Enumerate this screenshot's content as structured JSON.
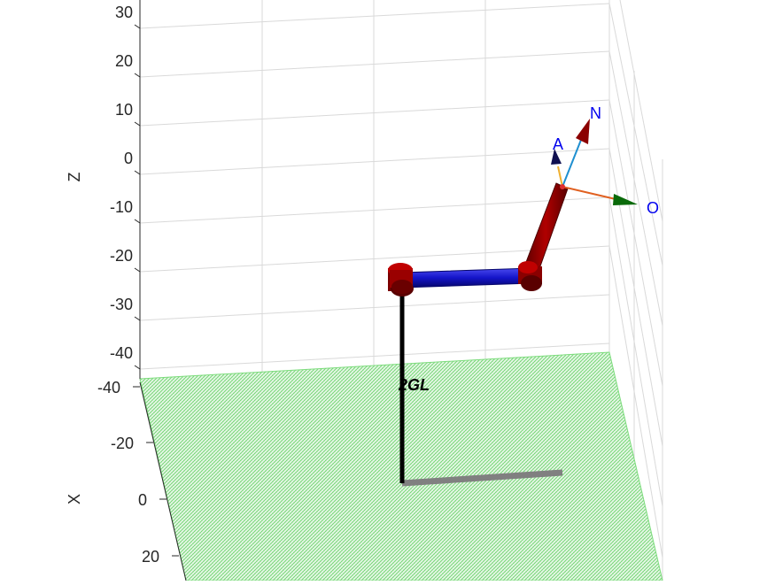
{
  "figure": {
    "robot_name": "2GL",
    "z_axis": {
      "label": "Z",
      "ticks": [
        "30",
        "20",
        "10",
        "0",
        "-10",
        "-20",
        "-30",
        "-40"
      ]
    },
    "x_axis": {
      "label": "X",
      "ticks": [
        "-40",
        "-20",
        "0",
        "20"
      ]
    },
    "end_effector_frame": {
      "labels": {
        "n": "N",
        "o": "O",
        "a": "A"
      }
    },
    "colors": {
      "floor": "#7ddc7d",
      "grid": "#d9d9d9",
      "base_link": "#000000",
      "shadow": "#808080",
      "link_1": "#1414c8",
      "link_2": "#8c0000",
      "joint": "#a00000",
      "n_arrow": "#8b0000",
      "o_arrow": "#0a6a0a",
      "a_arrow": "#101050",
      "n_line": "#1f8fd0",
      "o_line": "#e06020",
      "a_line": "#f0b030",
      "label_text": "#0000ee"
    }
  }
}
